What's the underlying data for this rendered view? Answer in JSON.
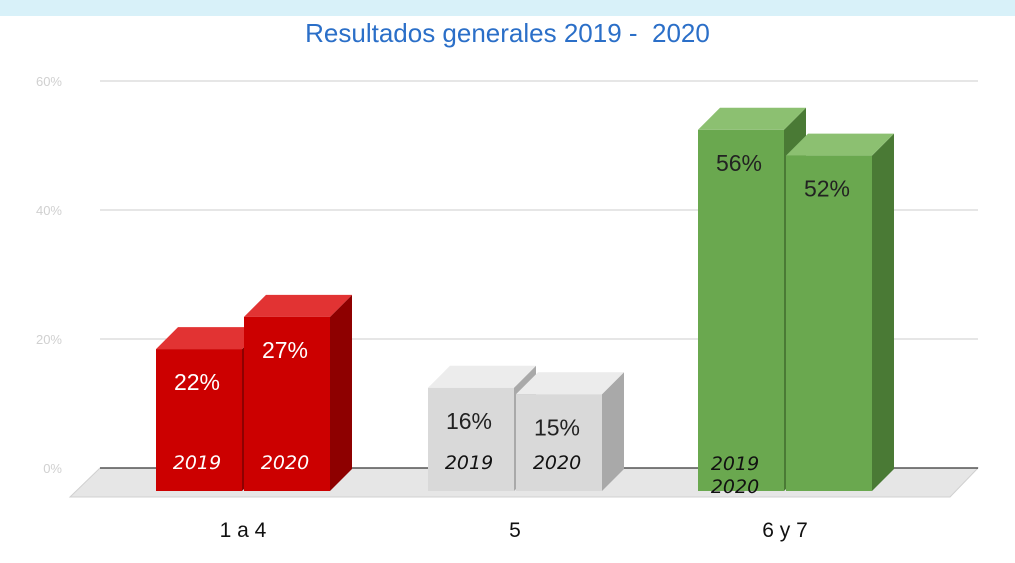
{
  "chart_data": {
    "type": "bar",
    "title": "Resultados generales 2019 -  2020",
    "categories": [
      "1 a 4",
      "5",
      "6 y 7"
    ],
    "series": [
      {
        "name": "2019",
        "values": [
          22,
          16,
          56
        ]
      },
      {
        "name": "2020",
        "values": [
          27,
          15,
          52
        ]
      }
    ],
    "data_labels": [
      [
        "22%",
        "27%"
      ],
      [
        "16%",
        "15%"
      ],
      [
        "56%",
        "52%"
      ]
    ],
    "y_ticks": [
      0,
      20,
      40,
      60
    ],
    "y_tick_labels": [
      "0%",
      "20%",
      "40%",
      "60%"
    ],
    "ylim": [
      0,
      60
    ],
    "grid": true,
    "legend": "none",
    "colors": {
      "cat0": {
        "front": "#cc0000",
        "top": "#e23333",
        "side": "#8e0000"
      },
      "cat1": {
        "front": "#d9d9d9",
        "top": "#ececec",
        "side": "#a9a9a9"
      },
      "cat2": {
        "front": "#6aa84f",
        "top": "#8cc071",
        "side": "#4a7a35"
      }
    }
  }
}
